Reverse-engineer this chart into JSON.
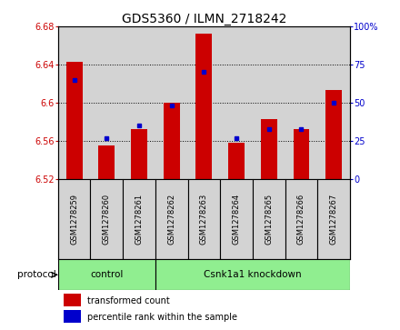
{
  "title": "GDS5360 / ILMN_2718242",
  "samples": [
    "GSM1278259",
    "GSM1278260",
    "GSM1278261",
    "GSM1278262",
    "GSM1278263",
    "GSM1278264",
    "GSM1278265",
    "GSM1278266",
    "GSM1278267"
  ],
  "transformed_count": [
    6.643,
    6.555,
    6.573,
    6.6,
    6.672,
    6.558,
    6.583,
    6.573,
    6.613
  ],
  "percentile_rank": [
    65,
    27,
    35,
    48,
    70,
    27,
    33,
    33,
    50
  ],
  "ylim_left": [
    6.52,
    6.68
  ],
  "ylim_right": [
    0,
    100
  ],
  "yticks_left": [
    6.52,
    6.56,
    6.6,
    6.64,
    6.68
  ],
  "yticks_right": [
    0,
    25,
    50,
    75,
    100
  ],
  "control_samples": 3,
  "knockdown_samples": 6,
  "protocol_label": "protocol",
  "control_label": "control",
  "knockdown_label": "Csnk1a1 knockdown",
  "bar_color": "#cc0000",
  "dot_color": "#0000cc",
  "bar_width": 0.5,
  "background_color": "#ffffff",
  "panel_bg": "#d3d3d3",
  "green_bg": "#90ee90",
  "title_fontsize": 10,
  "tick_fontsize": 7,
  "label_fontsize": 7.5,
  "legend_fontsize": 7
}
